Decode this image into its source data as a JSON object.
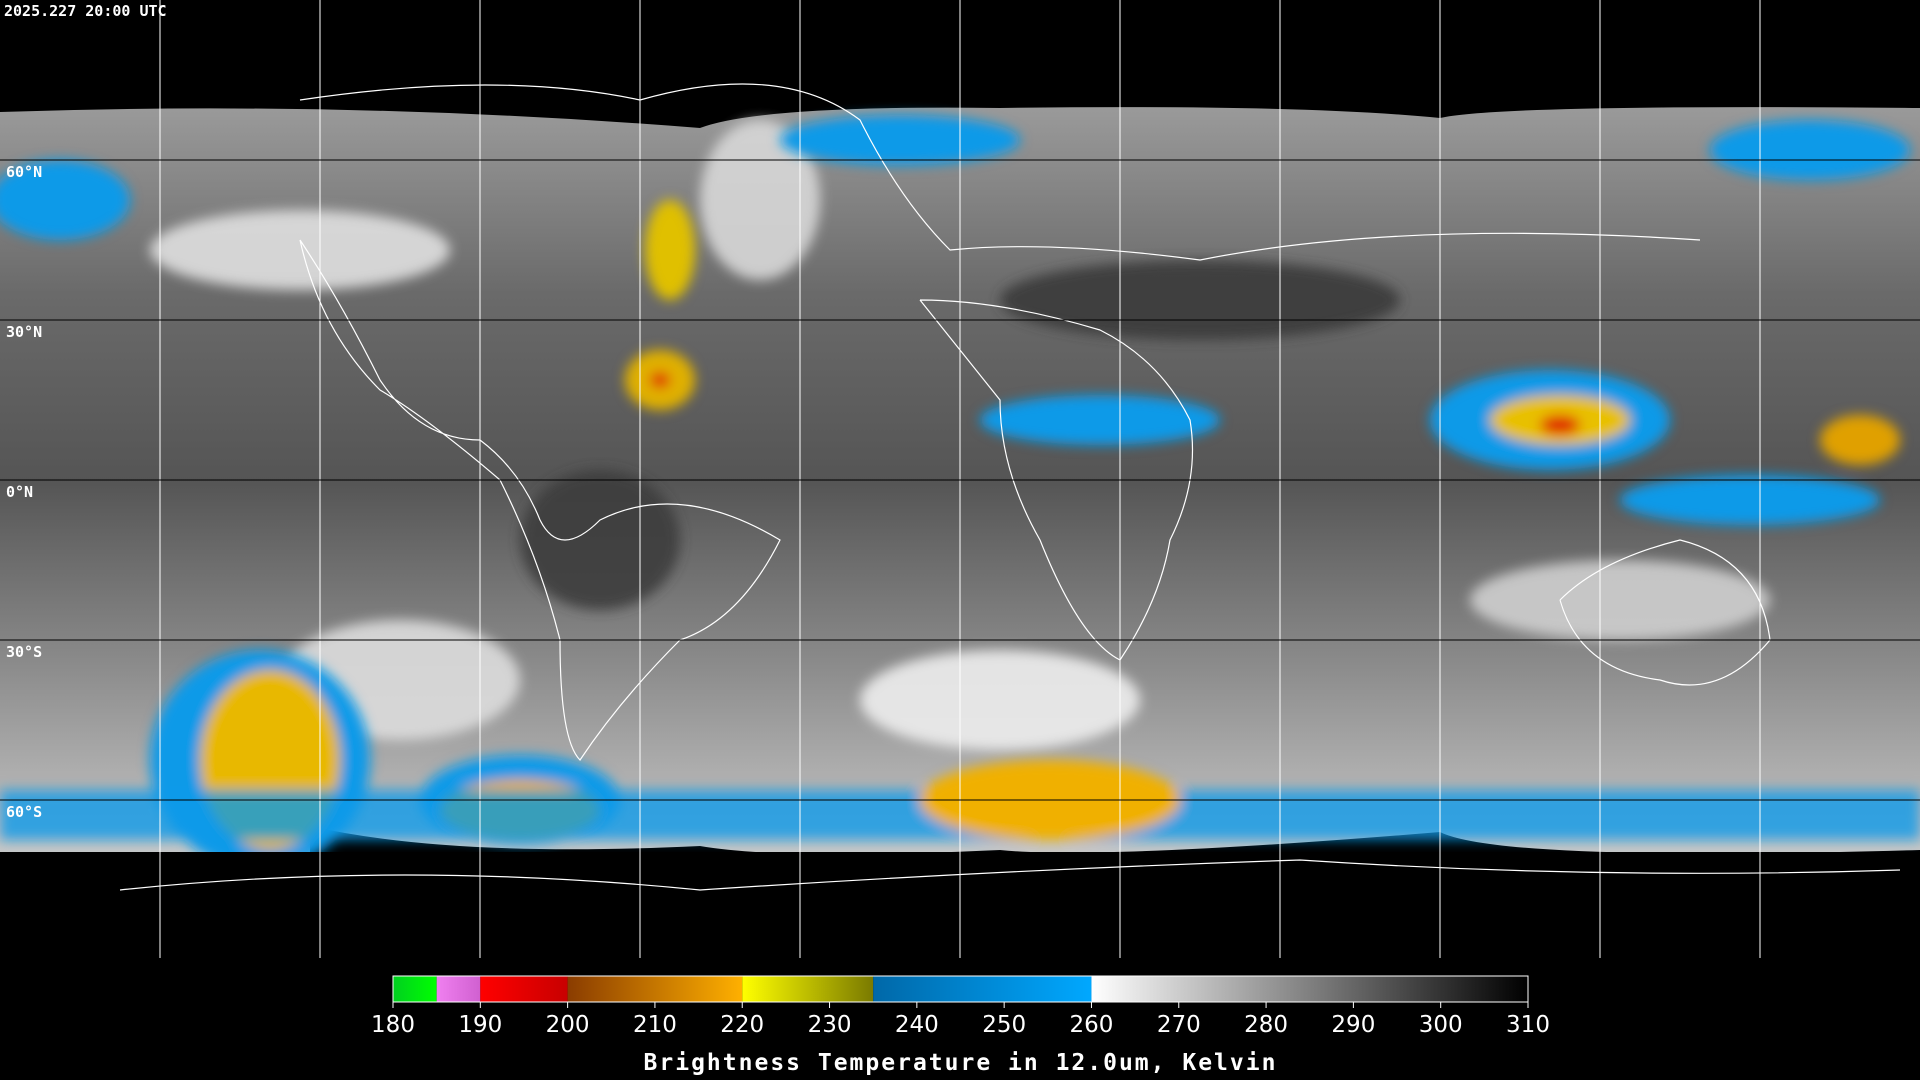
{
  "header": {
    "timestamp": "2025.227 20:00 UTC"
  },
  "map": {
    "lat_labels": [
      "60°N",
      "30°N",
      "0°N",
      "30°S",
      "60°S"
    ]
  },
  "colorbar": {
    "title": "Brightness Temperature in 12.0um, Kelvin",
    "range": [
      180,
      310
    ],
    "ticks": [
      180,
      190,
      200,
      210,
      220,
      230,
      240,
      250,
      260,
      270,
      280,
      290,
      300,
      310
    ],
    "segments": [
      {
        "from": 180,
        "to": 185,
        "colors": [
          "#00d020",
          "#00ff00"
        ]
      },
      {
        "from": 185,
        "to": 190,
        "colors": [
          "#f080f0",
          "#d060d0"
        ]
      },
      {
        "from": 190,
        "to": 200,
        "colors": [
          "#ff0000",
          "#c80000"
        ]
      },
      {
        "from": 200,
        "to": 220,
        "colors": [
          "#8a3c00",
          "#ffb000"
        ]
      },
      {
        "from": 220,
        "to": 235,
        "colors": [
          "#ffff00",
          "#7a7a00"
        ]
      },
      {
        "from": 235,
        "to": 260,
        "colors": [
          "#0068a8",
          "#00a8ff"
        ]
      },
      {
        "from": 260,
        "to": 310,
        "colors": [
          "#ffffff",
          "#000000"
        ]
      }
    ]
  }
}
